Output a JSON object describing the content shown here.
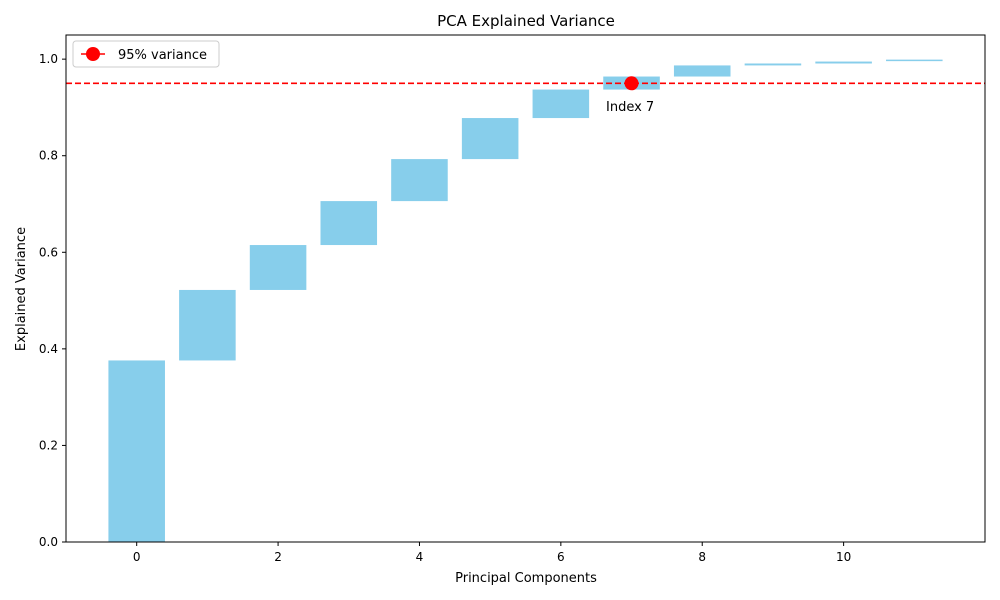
{
  "chart_data": {
    "type": "bar",
    "subtype": "waterfall",
    "title": "PCA Explained Variance",
    "xlabel": "Principal Components",
    "ylabel": "Explained Variance",
    "xlim": [
      -1,
      12
    ],
    "ylim": [
      0,
      1.05
    ],
    "xticks": [
      "0",
      "2",
      "4",
      "6",
      "8",
      "10"
    ],
    "yticks": [
      "0.0",
      "0.2",
      "0.4",
      "0.6",
      "0.8",
      "1.0"
    ],
    "grid": false,
    "bars": [
      {
        "x": 0,
        "bottom": 0.0,
        "top": 0.376
      },
      {
        "x": 1,
        "bottom": 0.376,
        "top": 0.522
      },
      {
        "x": 2,
        "bottom": 0.522,
        "top": 0.615
      },
      {
        "x": 3,
        "bottom": 0.615,
        "top": 0.706
      },
      {
        "x": 4,
        "bottom": 0.706,
        "top": 0.793
      },
      {
        "x": 5,
        "bottom": 0.793,
        "top": 0.878
      },
      {
        "x": 6,
        "bottom": 0.878,
        "top": 0.937
      },
      {
        "x": 7,
        "bottom": 0.937,
        "top": 0.964
      },
      {
        "x": 8,
        "bottom": 0.964,
        "top": 0.987
      },
      {
        "x": 9,
        "bottom": 0.987,
        "top": 0.991
      },
      {
        "x": 10,
        "bottom": 0.991,
        "top": 0.995
      },
      {
        "x": 11,
        "bottom": 0.996,
        "top": 0.999
      }
    ],
    "bar_color": "#87ceeb",
    "threshold": {
      "y": 0.95,
      "color": "#ff0000",
      "style": "dashed"
    },
    "marker": {
      "x": 7,
      "y": 0.95,
      "color": "#ff0000"
    },
    "annotation": {
      "text": "Index 7"
    },
    "legend": {
      "position": "top-left",
      "entries": [
        {
          "label": "95% variance",
          "color": "#ff0000"
        }
      ]
    }
  }
}
